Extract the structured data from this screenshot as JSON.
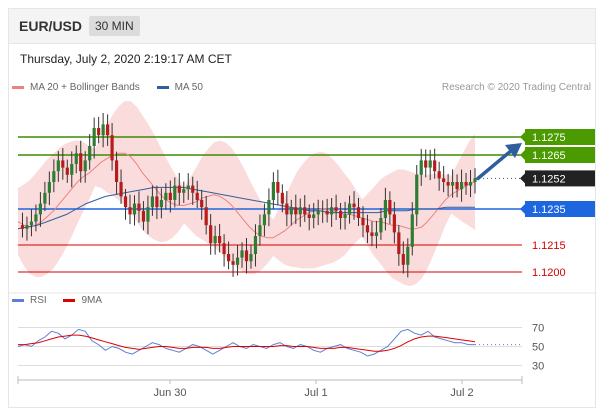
{
  "header": {
    "symbol": "EUR/USD",
    "timeframe": "30 MIN"
  },
  "timestamp": "Thursday, July 2, 2020 2:19:17 AM CET",
  "legend": {
    "items": [
      {
        "label": "MA 20 + Bollinger Bands",
        "color": "#f08080"
      },
      {
        "label": "MA 50",
        "color": "#2f5f9e"
      }
    ],
    "credit": "Research © 2020 Trading Central"
  },
  "rsi_legend": {
    "items": [
      {
        "label": "RSI",
        "color": "#5b7fd6"
      },
      {
        "label": "9MA",
        "color": "#e00000"
      }
    ]
  },
  "chart_data": [
    {
      "type": "candlestick",
      "ylim": [
        1.119,
        1.129
      ],
      "x_ticks": [
        "Jun 30",
        "Jul 1",
        "Jul 2"
      ],
      "current_price": {
        "value": "1.1252",
        "color": "#222222"
      },
      "levels": [
        {
          "value": "1.1275",
          "kind": "resistance",
          "color": "#3d8c00"
        },
        {
          "value": "1.1265",
          "kind": "resistance",
          "color": "#3d8c00"
        },
        {
          "value": "1.1235",
          "kind": "pivot",
          "color": "#1e66e0"
        },
        {
          "value": "1.1215",
          "kind": "support",
          "color": "#d40000"
        },
        {
          "value": "1.1200",
          "kind": "support",
          "color": "#d40000"
        }
      ],
      "close_path": [
        1.1226,
        1.1224,
        1.1226,
        1.1228,
        1.1232,
        1.1238,
        1.1244,
        1.125,
        1.1256,
        1.1262,
        1.1258,
        1.1254,
        1.126,
        1.1266,
        1.1256,
        1.1262,
        1.127,
        1.128,
        1.1276,
        1.1282,
        1.1276,
        1.1262,
        1.125,
        1.1242,
        1.1236,
        1.1232,
        1.1238,
        1.1234,
        1.1228,
        1.1236,
        1.1242,
        1.1236,
        1.124,
        1.1244,
        1.124,
        1.1248,
        1.1244,
        1.1246,
        1.1248,
        1.1244,
        1.124,
        1.1236,
        1.1226,
        1.1216,
        1.122,
        1.1216,
        1.121,
        1.1206,
        1.1204,
        1.1208,
        1.1212,
        1.1206,
        1.121,
        1.122,
        1.1226,
        1.1232,
        1.124,
        1.125,
        1.1244,
        1.1238,
        1.1232,
        1.1236,
        1.1232,
        1.1236,
        1.1232,
        1.123,
        1.1232,
        1.1234,
        1.1234,
        1.1232,
        1.1236,
        1.1234,
        1.123,
        1.1232,
        1.1238,
        1.1236,
        1.123,
        1.1226,
        1.1222,
        1.122,
        1.1222,
        1.123,
        1.124,
        1.1232,
        1.1222,
        1.121,
        1.1204,
        1.1214,
        1.1232,
        1.1254,
        1.1262,
        1.1258,
        1.1262,
        1.1256,
        1.1252,
        1.125,
        1.1248,
        1.125,
        1.1246,
        1.125,
        1.1248,
        1.125,
        1.1252
      ],
      "ma20_path": [
        1.1228,
        1.1226,
        1.1225,
        1.1226,
        1.1228,
        1.1231,
        1.1234,
        1.1238,
        1.1242,
        1.1246,
        1.125,
        1.1253,
        1.1255,
        1.1258,
        1.1261,
        1.1263,
        1.1265,
        1.1266,
        1.1266,
        1.1264,
        1.126,
        1.1255,
        1.1251,
        1.1247,
        1.1243,
        1.124,
        1.1238,
        1.1237,
        1.1237,
        1.1238,
        1.1239,
        1.1241,
        1.1242,
        1.1243,
        1.1242,
        1.124,
        1.1237,
        1.1233,
        1.1229,
        1.1225,
        1.1222,
        1.122,
        1.1219,
        1.1219,
        1.1221,
        1.1223,
        1.1226,
        1.1229,
        1.1231,
        1.1233,
        1.1234,
        1.1235,
        1.1235,
        1.1234,
        1.1233,
        1.1232,
        1.1232,
        1.1231,
        1.123,
        1.1229,
        1.1228,
        1.1228,
        1.1227,
        1.1226,
        1.1226,
        1.1225,
        1.1224,
        1.1224,
        1.1225,
        1.1228,
        1.1232,
        1.1236,
        1.124,
        1.1243,
        1.1245,
        1.1247,
        1.1249,
        1.125
      ],
      "ma50_path": [
        1.1224,
        1.1225,
        1.1226,
        1.1228,
        1.123,
        1.1232,
        1.1235,
        1.1238,
        1.124,
        1.1242,
        1.1243,
        1.1244,
        1.1245,
        1.1246,
        1.1247,
        1.1247,
        1.1247,
        1.1247,
        1.1246,
        1.1245,
        1.1244,
        1.1243,
        1.1242,
        1.1241,
        1.124,
        1.1239,
        1.1238,
        1.1237,
        1.1236,
        1.1235,
        1.1234,
        1.1234,
        1.1233,
        1.1233,
        1.1233,
        1.1233,
        1.1233,
        1.1233,
        1.1234,
        1.1234,
        1.1234,
        1.1235,
        1.1235,
        1.1235,
        1.1236,
        1.1236,
        1.1236,
        1.1236
      ]
    },
    {
      "type": "line",
      "title": "RSI",
      "ylim": [
        20,
        80
      ],
      "y_ticks": [
        "70",
        "50",
        "30"
      ],
      "series": [
        {
          "name": "RSI",
          "color": "#5b7fd6",
          "values": [
            50,
            52,
            50,
            56,
            60,
            66,
            64,
            58,
            62,
            68,
            66,
            56,
            52,
            46,
            50,
            48,
            44,
            42,
            46,
            50,
            54,
            52,
            48,
            46,
            44,
            48,
            52,
            50,
            46,
            42,
            46,
            50,
            54,
            50,
            48,
            52,
            50,
            48,
            52,
            54,
            50,
            48,
            52,
            50,
            46,
            44,
            48,
            50,
            52,
            48,
            46,
            44,
            40,
            42,
            46,
            50,
            58,
            66,
            68,
            64,
            62,
            66,
            60,
            58,
            56,
            54,
            54,
            52,
            52
          ]
        },
        {
          "name": "9MA",
          "color": "#e00000",
          "values": [
            52,
            52,
            53,
            54,
            56,
            58,
            60,
            61,
            62,
            62,
            61,
            59,
            57,
            55,
            53,
            51,
            49,
            48,
            47,
            48,
            49,
            50,
            50,
            49,
            48,
            48,
            49,
            49,
            49,
            48,
            48,
            49,
            50,
            50,
            50,
            50,
            50,
            50,
            50,
            51,
            51,
            50,
            50,
            50,
            49,
            48,
            48,
            48,
            49,
            49,
            48,
            47,
            46,
            45,
            45,
            46,
            48,
            51,
            55,
            58,
            60,
            61,
            61,
            60,
            59,
            58,
            57,
            56,
            55
          ]
        }
      ]
    }
  ]
}
